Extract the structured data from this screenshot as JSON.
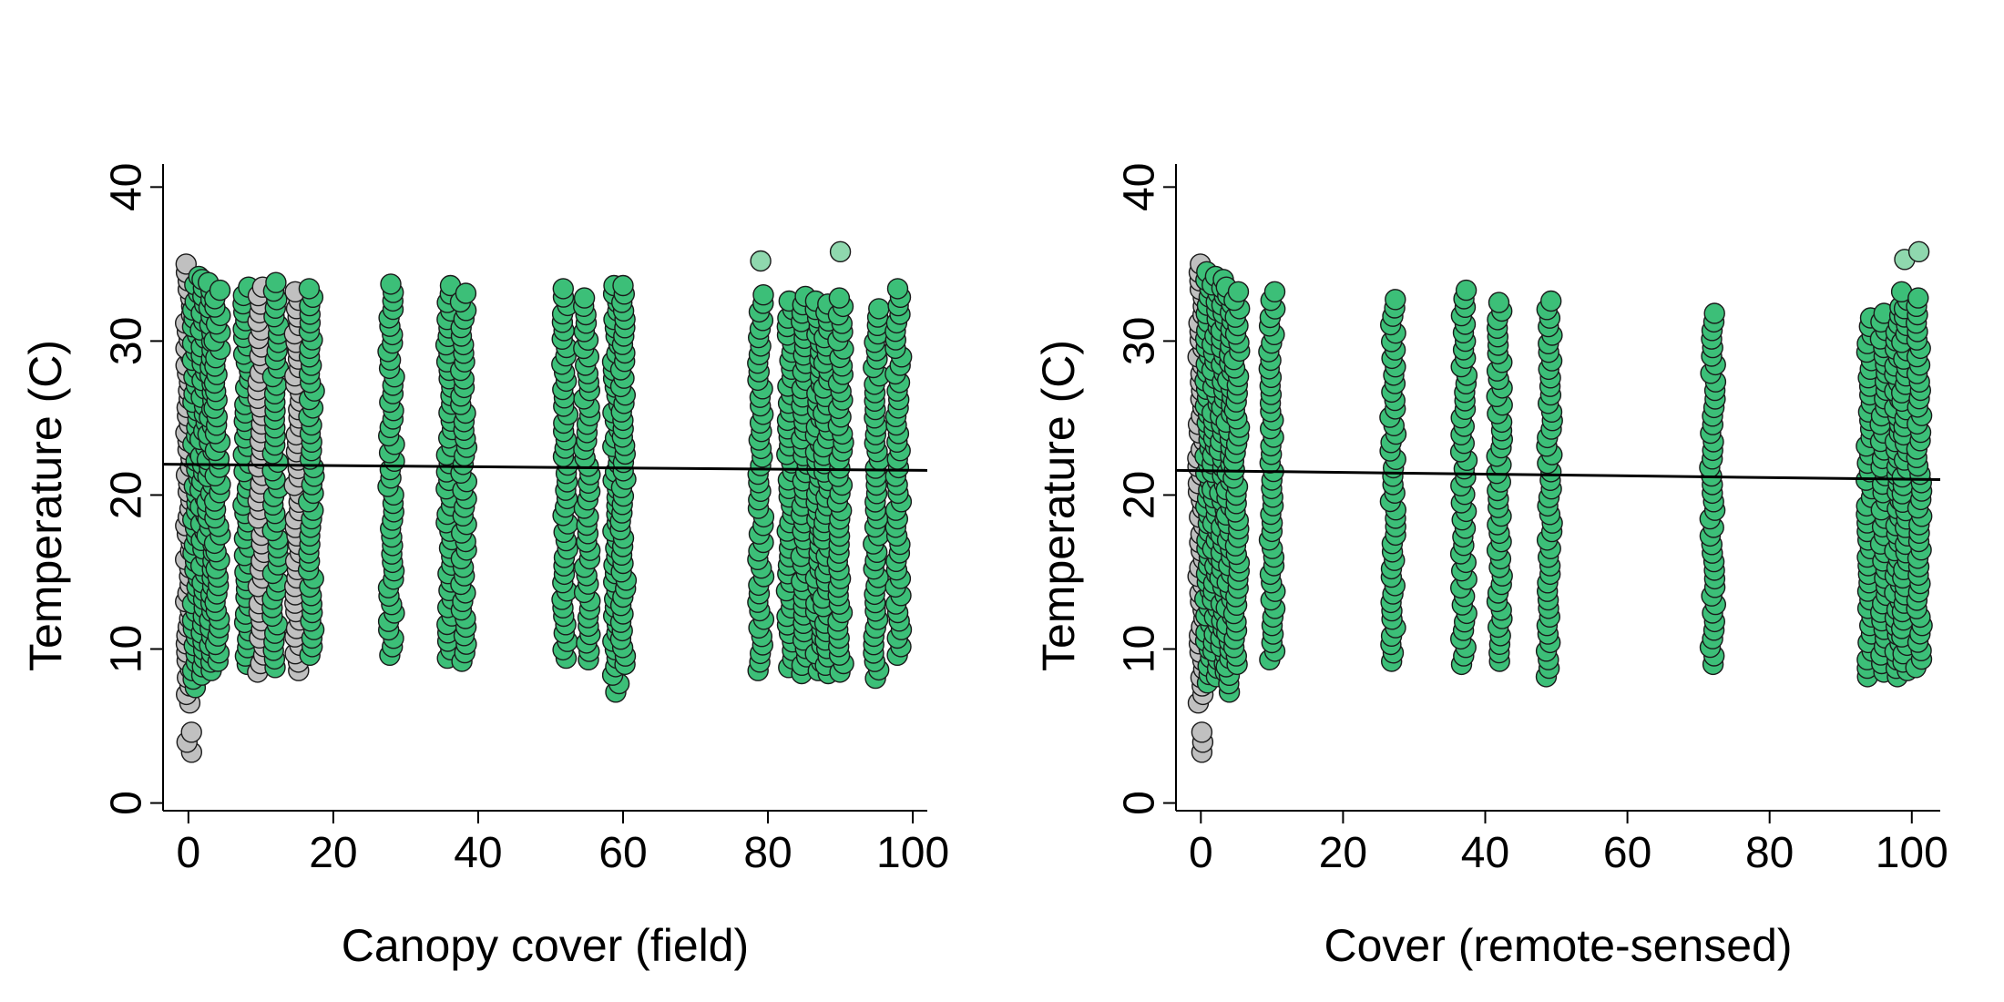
{
  "colors": {
    "background": "#ffffff",
    "point_fill_zero": "#c0c0c0",
    "point_fill_green": "#3cbf78",
    "point_fill_outlier": "#8fd8ae",
    "point_stroke": "#1a1a1a",
    "line": "#000000"
  },
  "chart_data": [
    {
      "type": "scatter",
      "xlabel": "Canopy cover (field)",
      "ylabel": "Temperature (C)",
      "xlim": [
        -3.5,
        102
      ],
      "ylim": [
        -0.5,
        41.5
      ],
      "xticks": [
        0,
        20,
        40,
        60,
        80,
        100
      ],
      "yticks": [
        0,
        10,
        20,
        30,
        40
      ],
      "xtick_labels": [
        "0",
        "20",
        "40",
        "60",
        "80",
        "100"
      ],
      "ytick_labels": [
        "0",
        "10",
        "20",
        "30",
        "40"
      ],
      "grid": false,
      "columns": [
        {
          "x": 0,
          "ymin": 6.5,
          "ymax": 35.0,
          "group": "zero"
        },
        {
          "x": 0,
          "ymin": 3.3,
          "ymax": 4.6,
          "group": "zero"
        },
        {
          "x": 1,
          "ymin": 7.5,
          "ymax": 34.2,
          "group": "green"
        },
        {
          "x": 2,
          "ymin": 8.3,
          "ymax": 34.0,
          "group": "green"
        },
        {
          "x": 3,
          "ymin": 8.6,
          "ymax": 33.8,
          "group": "green"
        },
        {
          "x": 4,
          "ymin": 9.2,
          "ymax": 33.3,
          "group": "green"
        },
        {
          "x": 8,
          "ymin": 9.0,
          "ymax": 33.5,
          "group": "green"
        },
        {
          "x": 10,
          "ymin": 8.5,
          "ymax": 33.5,
          "group": "zero"
        },
        {
          "x": 12,
          "ymin": 8.8,
          "ymax": 33.8,
          "group": "green"
        },
        {
          "x": 15,
          "ymin": 8.6,
          "ymax": 33.2,
          "group": "zero"
        },
        {
          "x": 17,
          "ymin": 9.6,
          "ymax": 33.4,
          "group": "green"
        },
        {
          "x": 28,
          "ymin": 9.6,
          "ymax": 33.7,
          "group": "green"
        },
        {
          "x": 36,
          "ymin": 9.4,
          "ymax": 33.6,
          "group": "green"
        },
        {
          "x": 38,
          "ymin": 9.2,
          "ymax": 33.1,
          "group": "green"
        },
        {
          "x": 52,
          "ymin": 9.4,
          "ymax": 33.4,
          "group": "green"
        },
        {
          "x": 55,
          "ymin": 9.3,
          "ymax": 32.8,
          "group": "green"
        },
        {
          "x": 59,
          "ymin": 7.2,
          "ymax": 33.6,
          "group": "green"
        },
        {
          "x": 60,
          "ymin": 9.0,
          "ymax": 33.6,
          "group": "green"
        },
        {
          "x": 79,
          "ymin": 8.6,
          "ymax": 33.0,
          "group": "green"
        },
        {
          "x": 83,
          "ymin": 8.8,
          "ymax": 32.6,
          "group": "green"
        },
        {
          "x": 85,
          "ymin": 8.4,
          "ymax": 32.9,
          "group": "green"
        },
        {
          "x": 87,
          "ymin": 8.6,
          "ymax": 32.6,
          "group": "green"
        },
        {
          "x": 88,
          "ymin": 8.4,
          "ymax": 32.4,
          "group": "green"
        },
        {
          "x": 90,
          "ymin": 8.5,
          "ymax": 32.8,
          "group": "green"
        },
        {
          "x": 95,
          "ymin": 8.1,
          "ymax": 32.1,
          "group": "green"
        },
        {
          "x": 98,
          "ymin": 9.6,
          "ymax": 33.4,
          "group": "green"
        }
      ],
      "extra_points": [
        {
          "x": 79,
          "y": 35.2,
          "group": "outlier"
        },
        {
          "x": 90,
          "y": 35.8,
          "group": "outlier"
        }
      ],
      "trend_line": {
        "x": [
          -3.5,
          102
        ],
        "y": [
          22.0,
          21.6
        ]
      }
    },
    {
      "type": "scatter",
      "xlabel": "Cover (remote-sensed)",
      "ylabel": "Temperature (C)",
      "xlim": [
        -3.5,
        104
      ],
      "ylim": [
        -0.5,
        41.5
      ],
      "xticks": [
        0,
        20,
        40,
        60,
        80,
        100
      ],
      "yticks": [
        0,
        10,
        20,
        30,
        40
      ],
      "xtick_labels": [
        "0",
        "20",
        "40",
        "60",
        "80",
        "100"
      ],
      "ytick_labels": [
        "0",
        "10",
        "20",
        "30",
        "40"
      ],
      "grid": false,
      "columns": [
        {
          "x": 0,
          "ymin": 6.5,
          "ymax": 35.0,
          "group": "zero"
        },
        {
          "x": 0,
          "ymin": 3.3,
          "ymax": 4.6,
          "group": "zero"
        },
        {
          "x": 1,
          "ymin": 7.8,
          "ymax": 34.5,
          "group": "green"
        },
        {
          "x": 2,
          "ymin": 8.2,
          "ymax": 34.2,
          "group": "green"
        },
        {
          "x": 3,
          "ymin": 8.5,
          "ymax": 34.0,
          "group": "green"
        },
        {
          "x": 4,
          "ymin": 7.2,
          "ymax": 33.5,
          "group": "green"
        },
        {
          "x": 5,
          "ymin": 9.0,
          "ymax": 33.2,
          "group": "green"
        },
        {
          "x": 10,
          "ymin": 9.3,
          "ymax": 33.2,
          "group": "green"
        },
        {
          "x": 27,
          "ymin": 9.2,
          "ymax": 32.7,
          "group": "green"
        },
        {
          "x": 37,
          "ymin": 9.0,
          "ymax": 33.3,
          "group": "green"
        },
        {
          "x": 42,
          "ymin": 9.2,
          "ymax": 32.5,
          "group": "green"
        },
        {
          "x": 49,
          "ymin": 8.2,
          "ymax": 32.6,
          "group": "green"
        },
        {
          "x": 72,
          "ymin": 9.0,
          "ymax": 31.8,
          "group": "green"
        },
        {
          "x": 94,
          "ymin": 8.2,
          "ymax": 31.5,
          "group": "green"
        },
        {
          "x": 96,
          "ymin": 8.5,
          "ymax": 31.8,
          "group": "green"
        },
        {
          "x": 98,
          "ymin": 8.2,
          "ymax": 32.2,
          "group": "green"
        },
        {
          "x": 99,
          "ymin": 8.6,
          "ymax": 33.2,
          "group": "green"
        },
        {
          "x": 101,
          "ymin": 8.8,
          "ymax": 32.8,
          "group": "green"
        }
      ],
      "extra_points": [
        {
          "x": 99,
          "y": 35.3,
          "group": "outlier"
        },
        {
          "x": 101,
          "y": 35.8,
          "group": "outlier"
        }
      ],
      "trend_line": {
        "x": [
          -3.5,
          104
        ],
        "y": [
          21.6,
          21.0
        ]
      }
    }
  ]
}
